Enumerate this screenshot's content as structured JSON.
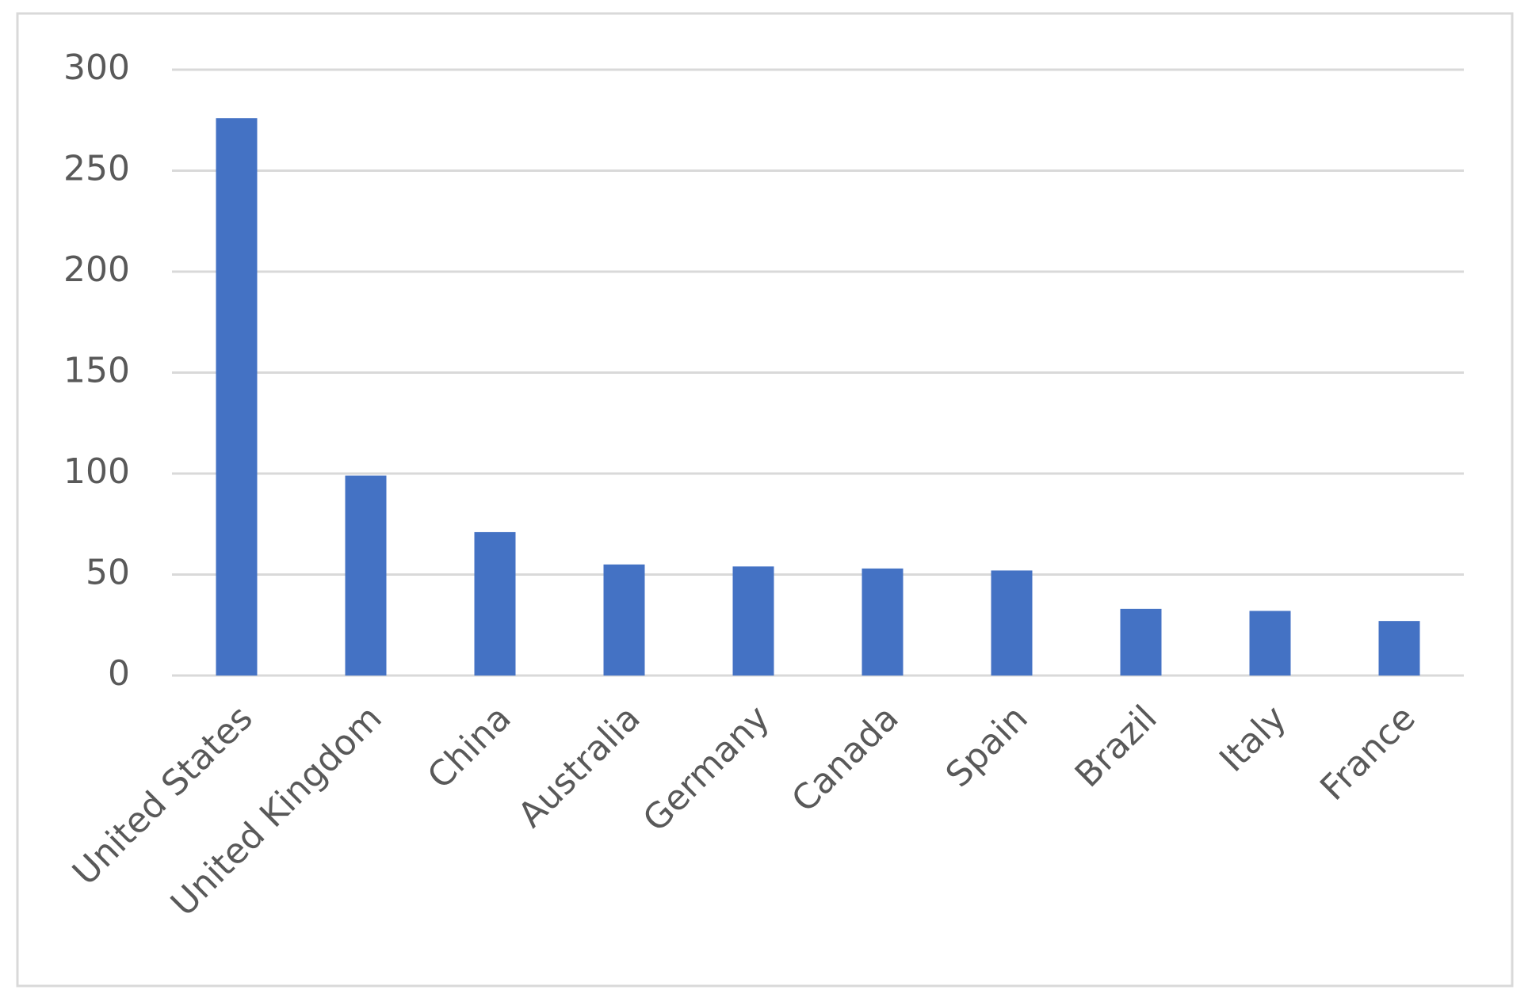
{
  "chart_data": {
    "type": "bar",
    "categories": [
      "United States",
      "United Kingdom",
      "China",
      "Australia",
      "Germany",
      "Canada",
      "Spain",
      "Brazil",
      "Italy",
      "France"
    ],
    "values": [
      276,
      99,
      71,
      55,
      54,
      53,
      52,
      33,
      32,
      27
    ],
    "color": "#4472c4",
    "ylim": [
      0,
      300
    ],
    "yticks": [
      0,
      50,
      100,
      150,
      200,
      250,
      300
    ],
    "grid": true
  }
}
